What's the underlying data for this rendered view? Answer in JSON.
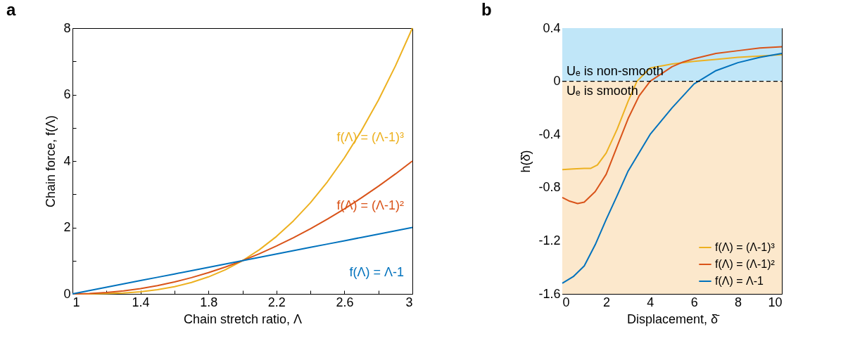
{
  "chart_data": [
    {
      "type": "line",
      "title": "a",
      "xlabel": "Chain stretch ratio, Λ",
      "ylabel": "Chain force, f(Λ)",
      "x": [
        1,
        1.1,
        1.2,
        1.3,
        1.4,
        1.5,
        1.6,
        1.7,
        1.8,
        1.9,
        2,
        2.1,
        2.2,
        2.3,
        2.4,
        2.5,
        2.6,
        2.7,
        2.8,
        2.9,
        3
      ],
      "series": [
        {
          "name": "f(Λ) = (Λ-1)³",
          "color": "#edb120",
          "values": [
            0,
            0.001,
            0.008,
            0.027,
            0.064,
            0.125,
            0.216,
            0.343,
            0.512,
            0.729,
            1,
            1.331,
            1.728,
            2.197,
            2.744,
            3.375,
            4.096,
            4.913,
            5.832,
            6.859,
            8
          ]
        },
        {
          "name": "f(Λ) = (Λ-1)²",
          "color": "#d95319",
          "values": [
            0,
            0.01,
            0.04,
            0.09,
            0.16,
            0.25,
            0.36,
            0.49,
            0.64,
            0.81,
            1,
            1.21,
            1.44,
            1.69,
            1.96,
            2.25,
            2.56,
            2.89,
            3.24,
            3.61,
            4
          ]
        },
        {
          "name": "f(Λ) = Λ-1",
          "color": "#0072bd",
          "values": [
            0,
            0.1,
            0.2,
            0.3,
            0.4,
            0.5,
            0.6,
            0.7,
            0.8,
            0.9,
            1,
            1.1,
            1.2,
            1.3,
            1.4,
            1.5,
            1.6,
            1.7,
            1.8,
            1.9,
            2
          ]
        }
      ],
      "xlim": [
        1,
        3
      ],
      "xticks": [
        1,
        {
          "value": 1.2,
          "label": null
        },
        1.4,
        {
          "value": 1.6,
          "label": null
        },
        1.8,
        {
          "value": 2,
          "label": null
        },
        2.2,
        {
          "value": 2.4,
          "label": null
        },
        2.6,
        {
          "value": 2.8,
          "label": null
        },
        3
      ],
      "ylim": [
        0,
        8
      ],
      "yticks": [
        0,
        {
          "value": 1,
          "label": null
        },
        2,
        {
          "value": 3,
          "label": null
        },
        4,
        {
          "value": 5,
          "label": null
        },
        6,
        {
          "value": 7,
          "label": null
        },
        8
      ],
      "grid": false,
      "legend": false,
      "line_style": "solid",
      "marker": "none"
    },
    {
      "type": "line",
      "title": "b",
      "xlabel": "Displacement, δ̄",
      "ylabel": "h(δ̄)",
      "series": [
        {
          "name": "f(Λ) = (Λ-1)³",
          "color": "#edb120",
          "x": [
            0,
            0.5,
            1,
            1.3,
            1.6,
            2,
            2.5,
            3,
            3.4,
            4,
            5,
            6,
            7,
            8,
            9,
            10
          ],
          "values": [
            -0.665,
            -0.66,
            -0.655,
            -0.655,
            -0.63,
            -0.54,
            -0.36,
            -0.15,
            0,
            0.1,
            0.13,
            0.15,
            0.165,
            0.18,
            0.19,
            0.2
          ]
        },
        {
          "name": "f(Λ) = (Λ-1)²",
          "color": "#d95319",
          "x": [
            0,
            0.3,
            0.7,
            1,
            1.5,
            2,
            2.5,
            3,
            3.5,
            4,
            5,
            5.5,
            6,
            7,
            8,
            9,
            10
          ],
          "values": [
            -0.875,
            -0.9,
            -0.92,
            -0.91,
            -0.83,
            -0.7,
            -0.49,
            -0.28,
            -0.11,
            0,
            0.11,
            0.145,
            0.17,
            0.21,
            0.23,
            0.25,
            0.26
          ]
        },
        {
          "name": "f(Λ) = Λ-1",
          "color": "#0072bd",
          "x": [
            0,
            0.5,
            1,
            1.5,
            2,
            2.5,
            3,
            4,
            5,
            6,
            6.2,
            7,
            8,
            9,
            10
          ],
          "values": [
            -1.52,
            -1.47,
            -1.39,
            -1.23,
            -1.04,
            -0.86,
            -0.675,
            -0.4,
            -0.2,
            -0.02,
            0,
            0.08,
            0.14,
            0.18,
            0.21
          ]
        }
      ],
      "xlim": [
        0,
        10
      ],
      "xticks": [
        0,
        {
          "value": 1,
          "label": null
        },
        2,
        {
          "value": 3,
          "label": null
        },
        4,
        {
          "value": 5,
          "label": null
        },
        6,
        {
          "value": 7,
          "label": null
        },
        8,
        {
          "value": 9,
          "label": null
        },
        10
      ],
      "ylim": [
        -1.6,
        0.4
      ],
      "yticks": [
        -1.6,
        {
          "value": -1.4,
          "label": null
        },
        -1.2,
        {
          "value": -1,
          "label": null
        },
        -0.8,
        {
          "value": -0.6,
          "label": null
        },
        -0.4,
        {
          "value": -0.2,
          "label": null
        },
        0,
        {
          "value": 0.2,
          "label": null
        },
        0.4
      ],
      "bands": [
        {
          "axis": "y",
          "from": 0,
          "to": 0.4,
          "label": "Uₑ is non-smooth",
          "color": "#c0e6f8"
        },
        {
          "axis": "y",
          "from": -1.6,
          "to": 0,
          "label": "Uₑ is smooth",
          "color": "#fce8cc"
        }
      ],
      "ref_lines": [
        {
          "axis": "y",
          "value": 0,
          "color": "#000000",
          "line_style": "dashed"
        }
      ],
      "grid": false,
      "legend": "bottom right",
      "line_style": "solid",
      "marker": "none"
    }
  ]
}
